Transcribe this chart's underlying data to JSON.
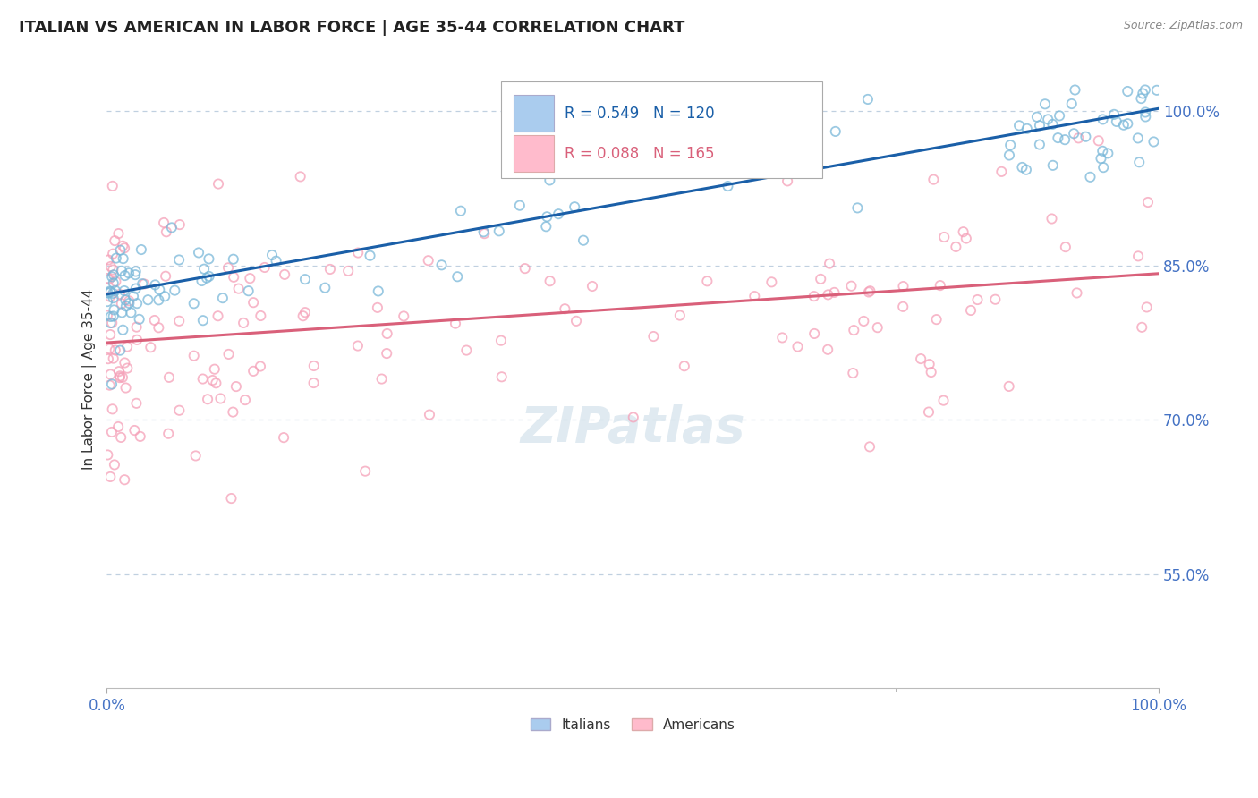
{
  "title": "ITALIAN VS AMERICAN IN LABOR FORCE | AGE 35-44 CORRELATION CHART",
  "source": "Source: ZipAtlas.com",
  "ylabel": "In Labor Force | Age 35-44",
  "xmin": 0.0,
  "xmax": 1.0,
  "ymin": 0.44,
  "ymax": 1.04,
  "yticks": [
    0.55,
    0.7,
    0.85,
    1.0
  ],
  "ytick_labels": [
    "55.0%",
    "70.0%",
    "85.0%",
    "100.0%"
  ],
  "xtick_labels": [
    "0.0%",
    "100.0%"
  ],
  "blue_R": 0.549,
  "blue_N": 120,
  "pink_R": 0.088,
  "pink_N": 165,
  "blue_color": "#7ab8d9",
  "blue_edge_color": "#7ab8d9",
  "blue_line_color": "#1a5fa8",
  "pink_color": "#f5a0b8",
  "pink_edge_color": "#f5a0b8",
  "pink_line_color": "#d9607a",
  "title_color": "#222222",
  "axis_label_color": "#333333",
  "tick_color": "#4472c4",
  "grid_color": "#c0d0e0",
  "watermark": "ZIPatlas",
  "scatter_size": 55,
  "scatter_alpha": 0.35,
  "blue_trend_start_y": 0.822,
  "blue_trend_end_y": 1.002,
  "pink_trend_start_y": 0.775,
  "pink_trend_end_y": 0.842
}
